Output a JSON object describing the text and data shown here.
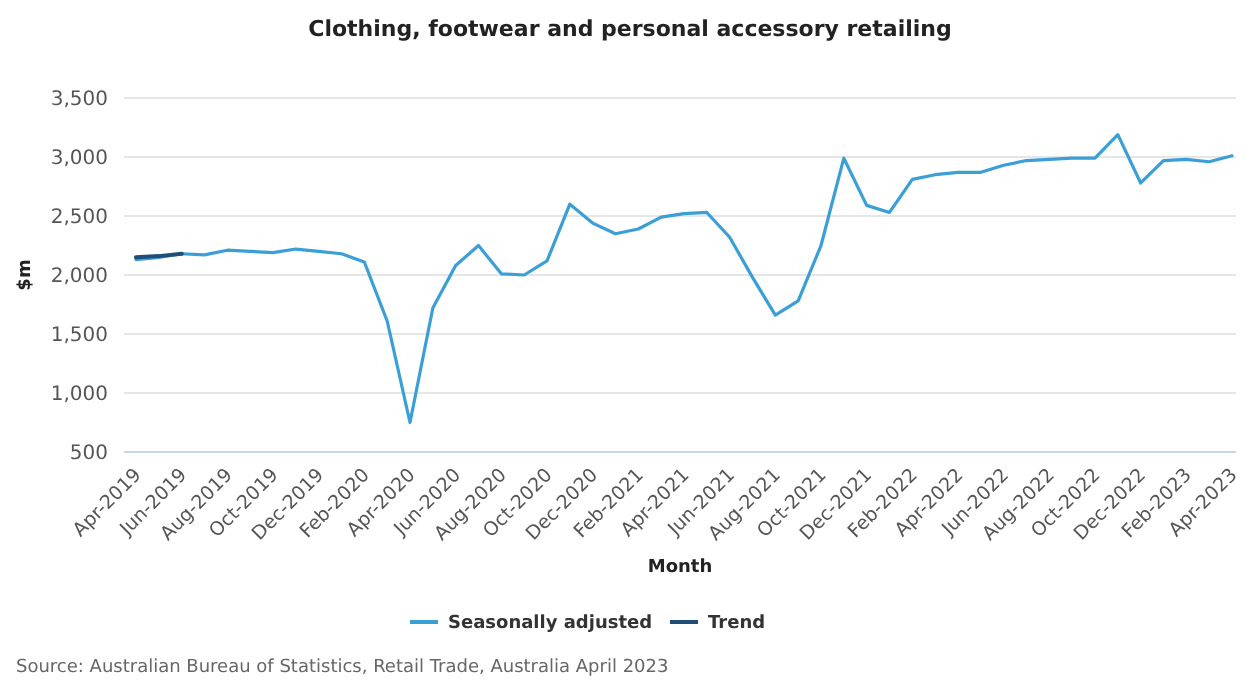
{
  "chart_data": {
    "type": "line",
    "title": "Clothing, footwear and personal accessory retailing",
    "xlabel": "Month",
    "ylabel": "$m",
    "categories": [
      "Apr-2019",
      null,
      "Jun-2019",
      null,
      "Aug-2019",
      null,
      "Oct-2019",
      null,
      "Dec-2019",
      null,
      "Feb-2020",
      null,
      "Apr-2020",
      null,
      "Jun-2020",
      null,
      "Aug-2020",
      null,
      "Oct-2020",
      null,
      "Dec-2020",
      null,
      "Feb-2021",
      null,
      "Apr-2021",
      null,
      "Jun-2021",
      null,
      "Aug-2021",
      null,
      "Oct-2021",
      null,
      "Dec-2021",
      null,
      "Feb-2022",
      null,
      "Apr-2022",
      null,
      "Jun-2022",
      null,
      "Aug-2022",
      null,
      "Oct-2022",
      null,
      "Dec-2022",
      null,
      "Feb-2023",
      null,
      "Apr-2023"
    ],
    "series": [
      {
        "name": "Seasonally adjusted",
        "color": "#3a9fd6",
        "values": [
          2130,
          2150,
          2180,
          2170,
          2210,
          2200,
          2190,
          2220,
          2200,
          2180,
          2110,
          1610,
          750,
          1720,
          2080,
          2250,
          2010,
          2000,
          2120,
          2600,
          2440,
          2350,
          2390,
          2490,
          2520,
          2530,
          2320,
          1980,
          1660,
          1780,
          2250,
          2990,
          2590,
          2530,
          2810,
          2850,
          2870,
          2870,
          2930,
          2970,
          2980,
          2990,
          2990,
          3190,
          2780,
          2970,
          2980,
          2960,
          3010
        ]
      },
      {
        "name": "Trend",
        "color": "#1f4e79",
        "values": [
          2150,
          2160,
          2180,
          null,
          null,
          null,
          null,
          null,
          null,
          null,
          null,
          null,
          null,
          null,
          null,
          null,
          null,
          null,
          null,
          null,
          null,
          null,
          null,
          null,
          null,
          null,
          null,
          null,
          null,
          null,
          null,
          null,
          null,
          null,
          null,
          null,
          null,
          null,
          null,
          null,
          null,
          null,
          null,
          null,
          null,
          null,
          null,
          null,
          null
        ]
      }
    ],
    "ylim": [
      500,
      3500
    ],
    "yticks": [
      {
        "value": 500,
        "label": "500"
      },
      {
        "value": 1000,
        "label": "1,000"
      },
      {
        "value": 1500,
        "label": "1,500"
      },
      {
        "value": 2000,
        "label": "2,000"
      },
      {
        "value": 2500,
        "label": "2,500"
      },
      {
        "value": 3000,
        "label": "3,000"
      },
      {
        "value": 3500,
        "label": "3,500"
      }
    ],
    "grid": "y",
    "legend": "bottom",
    "marker": "none",
    "line_style": "solid",
    "annotations": [
      "Source: Australian Bureau of Statistics, Retail Trade, Australia April 2023"
    ]
  }
}
